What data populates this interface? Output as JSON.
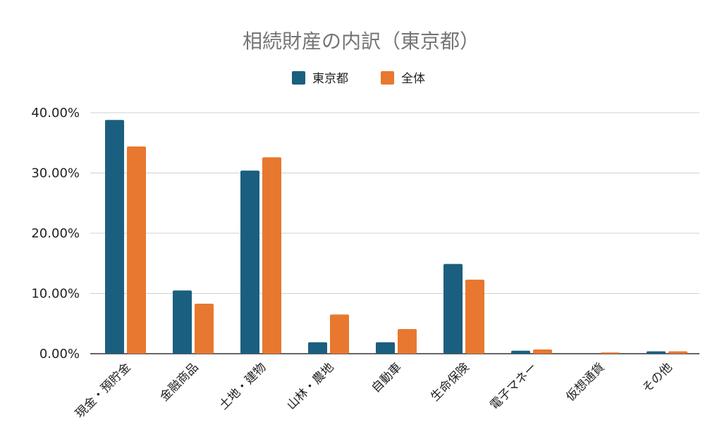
{
  "chart_data": {
    "type": "bar",
    "title": "相続財産の内訳（東京都）",
    "categories": [
      "現金・預貯金",
      "金融商品",
      "土地・建物",
      "山林・農地",
      "自動車",
      "生命保険",
      "電子マネー",
      "仮想通貨",
      "その他"
    ],
    "series": [
      {
        "name": "東京都",
        "color": "#1a5f80",
        "values": [
          38.8,
          10.5,
          30.4,
          1.9,
          1.9,
          14.9,
          0.5,
          0.0,
          0.4
        ]
      },
      {
        "name": "全体",
        "color": "#e8782f",
        "values": [
          34.4,
          8.3,
          32.6,
          6.5,
          4.1,
          12.3,
          0.7,
          0.2,
          0.4
        ]
      }
    ],
    "yticks": [
      "0.00%",
      "10.00%",
      "20.00%",
      "30.00%",
      "40.00%"
    ],
    "ylim": [
      0,
      40
    ],
    "grid": true,
    "legend": "top-center"
  }
}
